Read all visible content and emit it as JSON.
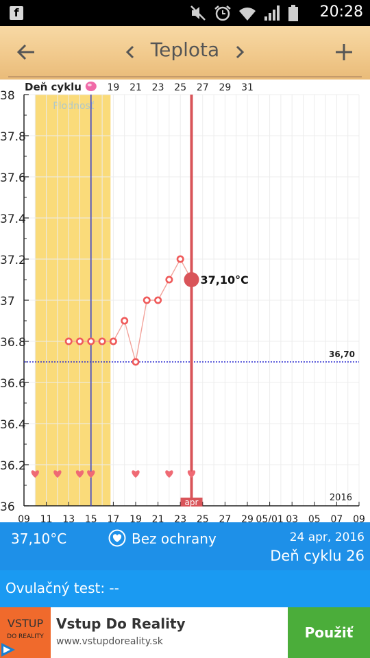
{
  "status_bar": {
    "time": "20:28",
    "icons": [
      "facebook-icon",
      "mute-icon",
      "alarm-icon",
      "wifi-icon",
      "signal-icon",
      "battery-icon"
    ],
    "facebook_glyph": "f"
  },
  "toolbar": {
    "title": "Teplota",
    "background": "#f1c98c"
  },
  "chart_data": {
    "type": "line",
    "header_label": "Deň cyklu",
    "top_axis_ticks": [
      "19",
      "21",
      "23",
      "25",
      "27",
      "29",
      "31"
    ],
    "y_ticks": [
      "38",
      "37.8",
      "37.6",
      "37.4",
      "37.2",
      "37",
      "36.8",
      "36.6",
      "36.4",
      "36.2",
      "36"
    ],
    "ylim": [
      36,
      38
    ],
    "x_ticks": [
      "09",
      "11",
      "13",
      "15",
      "17",
      "19",
      "21",
      "23",
      "25",
      "27",
      "29",
      "05/01",
      "03",
      "05",
      "07",
      "09"
    ],
    "fertile_label": "Plodnosť",
    "fertile_window": [
      10,
      16.75
    ],
    "ovulation_day": 15,
    "coverline": 36.7,
    "coverline_label": "36,70",
    "today_day": 24,
    "today_label": "apr",
    "year_label": "2016",
    "selected_temp_label": "37,10°C",
    "series": [
      {
        "x": [
          13,
          14,
          15,
          16,
          17,
          18,
          19,
          20,
          21,
          22,
          23,
          24
        ],
        "y": [
          36.8,
          36.8,
          36.8,
          36.8,
          36.8,
          36.9,
          36.7,
          37.0,
          37.0,
          37.1,
          37.2,
          37.1
        ]
      }
    ],
    "intercourse_days": [
      10,
      12,
      14,
      15,
      19,
      22,
      24
    ],
    "colors": {
      "fertile": "#fadb7a",
      "line": "#f2a39b",
      "point": "#ef5a5a",
      "today": "#d95459",
      "ovulation": "#3a42c8",
      "coverline": "#2a2ad0"
    }
  },
  "info": {
    "temperature": "37,10°C",
    "protection": "Bez ochrany",
    "date": "24 apr, 2016",
    "cycle_day": "Deň cyklu 26"
  },
  "ovulation_test": {
    "label": "Ovulačný test: --"
  },
  "ad": {
    "logo_line1": "VSTUP",
    "logo_line2": "DO REALITY",
    "title": "Vstup Do Reality",
    "url": "www.vstupdoreality.sk",
    "button": "Použiť"
  }
}
